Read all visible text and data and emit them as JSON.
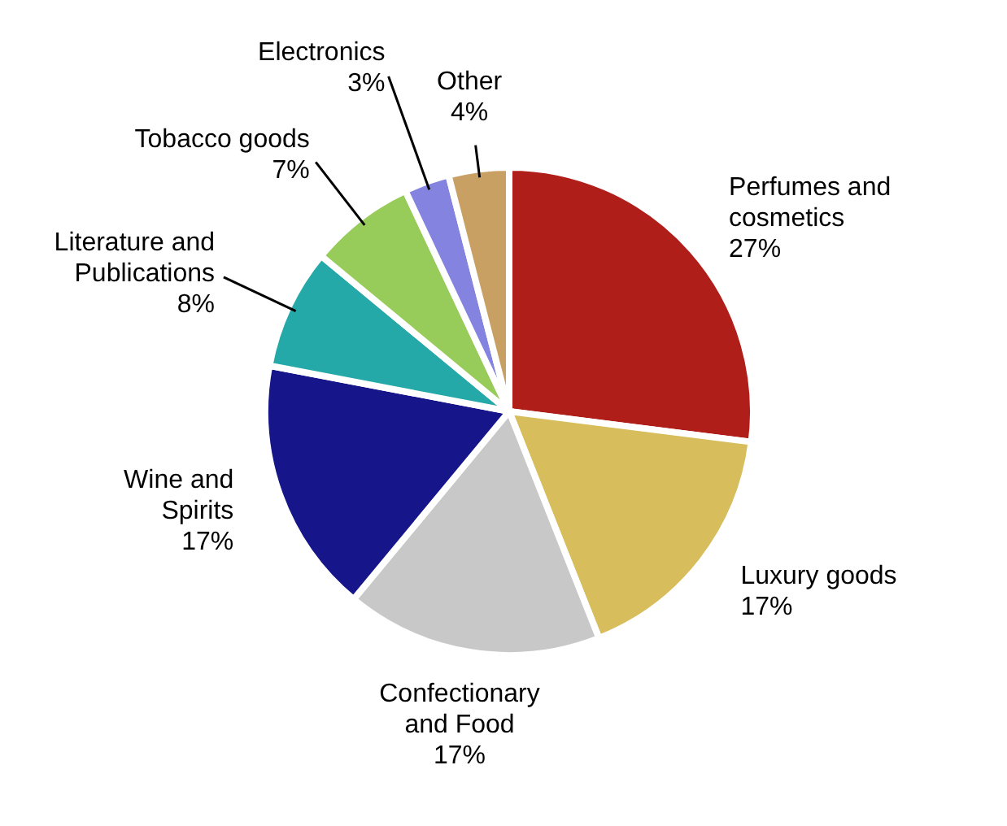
{
  "chart_data": {
    "type": "pie",
    "categories": [
      "Perfumes and cosmetics",
      "Luxury goods",
      "Confectionary and Food",
      "Wine and Spirits",
      "Literature and Publications",
      "Tobacco goods",
      "Electronics",
      "Other"
    ],
    "values": [
      27,
      17,
      17,
      17,
      8,
      7,
      3,
      4
    ],
    "value_labels": [
      "27%",
      "17%",
      "17%",
      "17%",
      "8%",
      "7%",
      "3%",
      "4%"
    ],
    "colors": [
      "#b01e1a",
      "#d8bd5c",
      "#c8c8c8",
      "#16168a",
      "#24a8a8",
      "#98cc5a",
      "#8484e0",
      "#c8a064"
    ],
    "legend": false
  }
}
